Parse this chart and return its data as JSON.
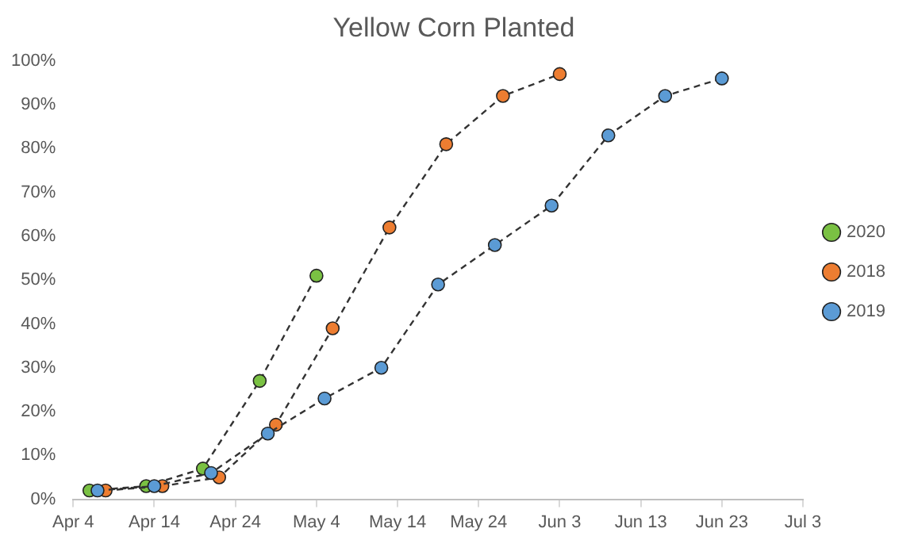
{
  "chart_data": {
    "type": "line",
    "title": "Yellow Corn Planted",
    "xlim": [
      "--04-04",
      "--07-03"
    ],
    "xticks": [
      {
        "value": "--04-04",
        "label": "Apr 4"
      },
      {
        "value": "--04-14",
        "label": "Apr 14"
      },
      {
        "value": "--04-24",
        "label": "Apr 24"
      },
      {
        "value": "--05-04",
        "label": "May 4"
      },
      {
        "value": "--05-14",
        "label": "May 14"
      },
      {
        "value": "--05-24",
        "label": "May 24"
      },
      {
        "value": "--06-03",
        "label": "Jun 3"
      },
      {
        "value": "--06-13",
        "label": "Jun 13"
      },
      {
        "value": "--06-23",
        "label": "Jun 23"
      },
      {
        "value": "--07-03",
        "label": "Jul 3"
      }
    ],
    "ylim": [
      0,
      100
    ],
    "yticks": [
      {
        "value": 0,
        "label": "0%"
      },
      {
        "value": 10,
        "label": "10%"
      },
      {
        "value": 20,
        "label": "20%"
      },
      {
        "value": 30,
        "label": "30%"
      },
      {
        "value": 40,
        "label": "40%"
      },
      {
        "value": 50,
        "label": "50%"
      },
      {
        "value": 60,
        "label": "60%"
      },
      {
        "value": 70,
        "label": "70%"
      },
      {
        "value": 80,
        "label": "80%"
      },
      {
        "value": 90,
        "label": "90%"
      },
      {
        "value": 100,
        "label": "100%"
      }
    ],
    "grid": false,
    "legend": "right",
    "marker": "circle",
    "line_style": "dashed",
    "series": [
      {
        "name": "2020",
        "color": "#7ac143",
        "x": [
          "--04-06",
          "--04-13",
          "--04-20",
          "--04-27",
          "--05-04"
        ],
        "values": [
          2,
          3,
          7,
          27,
          51
        ]
      },
      {
        "name": "2018",
        "color": "#ed7d31",
        "x": [
          "--04-08",
          "--04-15",
          "--04-22",
          "--04-29",
          "--05-06",
          "--05-13",
          "--05-20",
          "--05-27",
          "--06-03"
        ],
        "values": [
          2,
          3,
          5,
          17,
          39,
          62,
          81,
          92,
          97
        ]
      },
      {
        "name": "2019",
        "color": "#5b9bd5",
        "x": [
          "--04-07",
          "--04-14",
          "--04-21",
          "--04-28",
          "--05-05",
          "--05-12",
          "--05-19",
          "--05-26",
          "--06-02",
          "--06-09",
          "--06-16",
          "--06-23"
        ],
        "values": [
          2,
          3,
          6,
          15,
          23,
          30,
          49,
          58,
          67,
          83,
          92,
          96
        ]
      }
    ]
  }
}
